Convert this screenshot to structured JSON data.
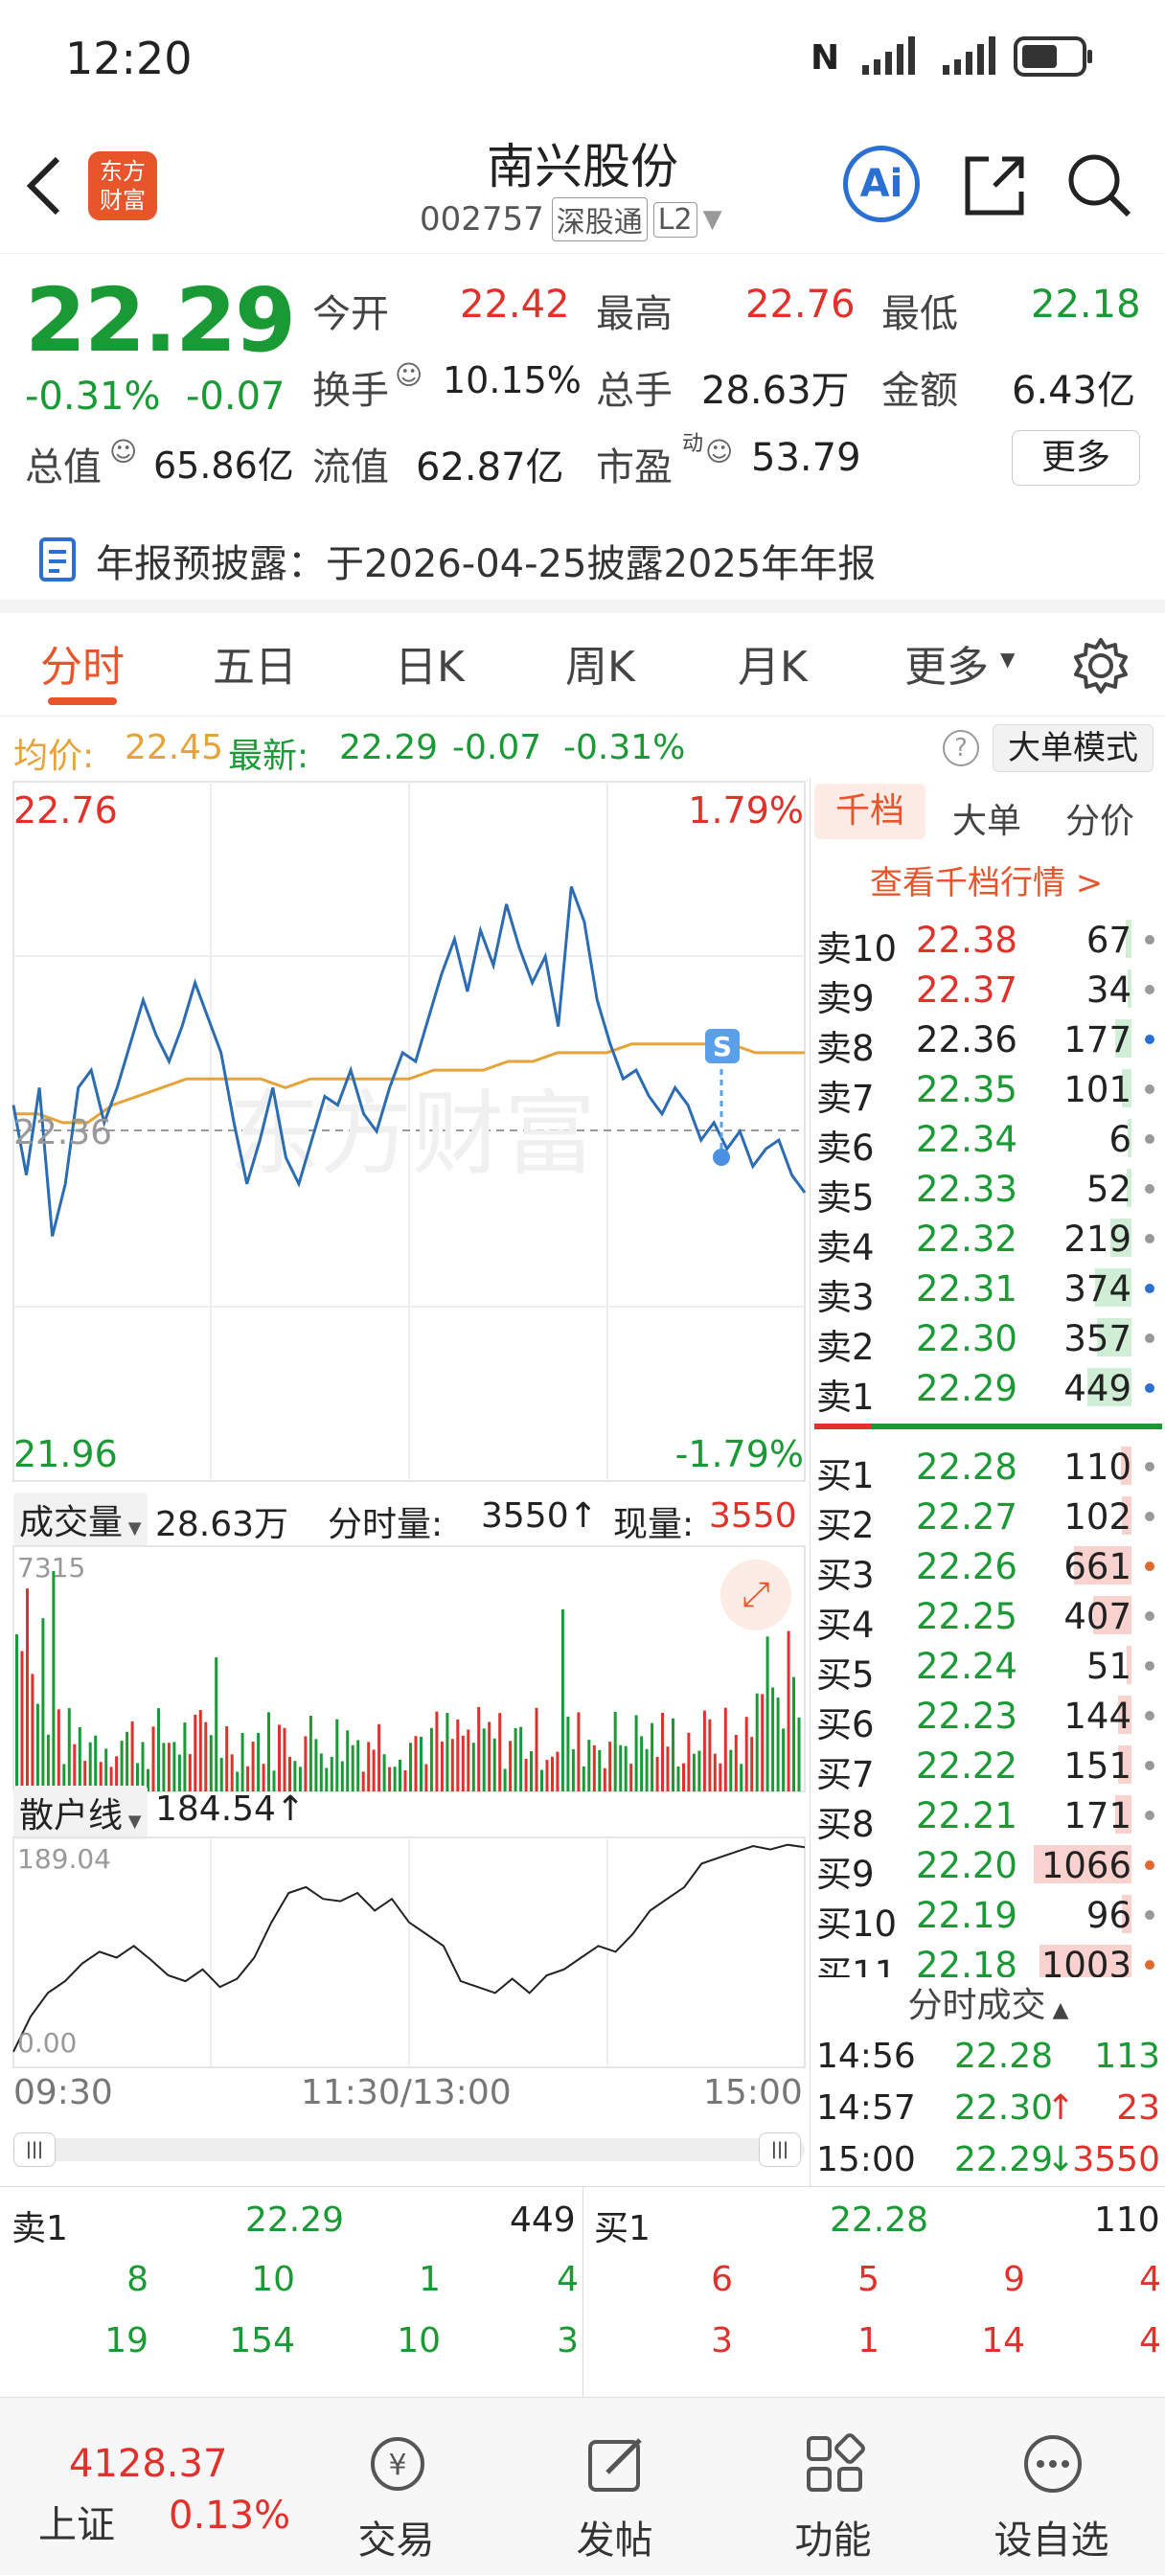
{
  "status": {
    "time": "12:20"
  },
  "header": {
    "logo_text": "东方\n财富",
    "title": "南兴股份",
    "code": "002757",
    "market_tag": "深股通",
    "level_tag": "L2",
    "ai_label": "Ai"
  },
  "quote": {
    "price": "22.29",
    "change_pct": "-0.31%",
    "change": "-0.07",
    "open_label": "今开",
    "open": "22.42",
    "high_label": "最高",
    "high": "22.76",
    "low_label": "最低",
    "low": "22.18",
    "turnover_label": "换手",
    "turnover": "10.15%",
    "volume_label": "总手",
    "volume": "28.63万",
    "amount_label": "金额",
    "amount": "6.43亿",
    "mktcap_label": "总值",
    "mktcap": "65.86亿",
    "float_label": "流值",
    "float": "62.87亿",
    "pe_label": "市盈",
    "pe_sup": "动",
    "pe": "53.79",
    "more": "更多"
  },
  "notice": {
    "text": "年报预披露：于2026-04-25披露2025年年报"
  },
  "tabs": [
    "分时",
    "五日",
    "日K",
    "周K",
    "月K",
    "更多"
  ],
  "infoline": {
    "avg_label": "均价:",
    "avg": "22.45",
    "latest_label": "最新:",
    "latest": "22.29",
    "chg": "-0.07",
    "pct": "-0.31%",
    "mode_btn": "大单模式"
  },
  "chart": {
    "top_price": "22.76",
    "top_pct": "1.79%",
    "bottom_price": "21.96",
    "bottom_pct": "-1.79%",
    "mid_price": "22.36",
    "marker": "S",
    "watermark": "东方财富",
    "vol_label": "成交量",
    "vol_total": "28.63万",
    "tick_vol_label": "分时量:",
    "tick_vol": "3550↑",
    "cur_vol_label": "现量:",
    "cur_vol": "3550",
    "vol_max": "7315",
    "retail_label": "散户线",
    "retail_val": "184.54↑",
    "retail_max": "189.04",
    "retail_min": "0.00",
    "time_start": "09:30",
    "time_mid": "11:30/13:00",
    "time_end": "15:00"
  },
  "chart_data": [
    {
      "type": "line",
      "series": [
        {
          "name": "价格",
          "values": [
            22.39,
            22.31,
            22.41,
            22.24,
            22.3,
            22.41,
            22.43,
            22.37,
            22.41,
            22.46,
            22.51,
            22.47,
            22.44,
            22.48,
            22.53,
            22.49,
            22.45,
            22.37,
            22.3,
            22.35,
            22.41,
            22.33,
            22.3,
            22.35,
            22.4,
            22.39,
            22.43,
            22.38,
            22.36,
            22.41,
            22.45,
            22.44,
            22.49,
            22.54,
            22.58,
            22.52,
            22.59,
            22.55,
            22.62,
            22.57,
            22.53,
            22.56,
            22.48,
            22.64,
            22.6,
            22.51,
            22.46,
            22.42,
            22.43,
            22.4,
            22.38,
            22.41,
            22.39,
            22.35,
            22.37,
            22.34,
            22.36,
            22.32,
            22.34,
            22.35,
            22.31,
            22.29
          ]
        },
        {
          "name": "均价",
          "values": [
            22.38,
            22.38,
            22.37,
            22.37,
            22.39,
            22.4,
            22.41,
            22.42,
            22.42,
            22.42,
            22.42,
            22.41,
            22.42,
            22.42,
            22.42,
            22.42,
            22.42,
            22.43,
            22.43,
            22.43,
            22.44,
            22.44,
            22.45,
            22.45,
            22.45,
            22.46,
            22.46,
            22.46,
            22.46,
            22.46,
            22.45,
            22.45,
            22.45
          ]
        }
      ],
      "ylim": [
        21.96,
        22.76
      ]
    },
    {
      "type": "bar",
      "name": "成交量",
      "ylim": [
        0,
        7315
      ]
    },
    {
      "type": "line",
      "name": "散户线",
      "ylim": [
        0.0,
        189.04
      ]
    }
  ],
  "orderbook": {
    "tabs": [
      "千档",
      "大单",
      "分价"
    ],
    "link": "查看千档行情 >",
    "asks": [
      {
        "label": "卖10",
        "price": "22.38",
        "vol": "67",
        "bar": 0.05,
        "dot": "#999"
      },
      {
        "label": "卖9",
        "price": "22.37",
        "vol": "34",
        "bar": 0.03,
        "dot": "#999"
      },
      {
        "label": "卖8",
        "price": "22.36",
        "vol": "177",
        "bar": 0.14,
        "dot": "#2a6fd1"
      },
      {
        "label": "卖7",
        "price": "22.35",
        "vol": "101",
        "bar": 0.08,
        "dot": "#999"
      },
      {
        "label": "卖6",
        "price": "22.34",
        "vol": "6",
        "bar": 0.01,
        "dot": "#999"
      },
      {
        "label": "卖5",
        "price": "22.33",
        "vol": "52",
        "bar": 0.04,
        "dot": "#999"
      },
      {
        "label": "卖4",
        "price": "22.32",
        "vol": "219",
        "bar": 0.18,
        "dot": "#999"
      },
      {
        "label": "卖3",
        "price": "22.31",
        "vol": "374",
        "bar": 0.32,
        "dot": "#2a6fd1"
      },
      {
        "label": "卖2",
        "price": "22.30",
        "vol": "357",
        "bar": 0.3,
        "dot": "#999"
      },
      {
        "label": "卖1",
        "price": "22.29",
        "vol": "449",
        "bar": 0.38,
        "dot": "#2a6fd1"
      }
    ],
    "bids": [
      {
        "label": "买1",
        "price": "22.28",
        "vol": "110",
        "bar": 0.09,
        "dot": "#999"
      },
      {
        "label": "买2",
        "price": "22.27",
        "vol": "102",
        "bar": 0.08,
        "dot": "#999"
      },
      {
        "label": "买3",
        "price": "22.26",
        "vol": "661",
        "bar": 0.5,
        "dot": "#e0692b"
      },
      {
        "label": "买4",
        "price": "22.25",
        "vol": "407",
        "bar": 0.33,
        "dot": "#999"
      },
      {
        "label": "买5",
        "price": "22.24",
        "vol": "51",
        "bar": 0.04,
        "dot": "#999"
      },
      {
        "label": "买6",
        "price": "22.23",
        "vol": "144",
        "bar": 0.12,
        "dot": "#999"
      },
      {
        "label": "买7",
        "price": "22.22",
        "vol": "151",
        "bar": 0.12,
        "dot": "#999"
      },
      {
        "label": "买8",
        "price": "22.21",
        "vol": "171",
        "bar": 0.14,
        "dot": "#999"
      },
      {
        "label": "买9",
        "price": "22.20",
        "vol": "1066",
        "bar": 0.85,
        "dot": "#e0692b"
      },
      {
        "label": "买10",
        "price": "22.19",
        "vol": "96",
        "bar": 0.08,
        "dot": "#999"
      },
      {
        "label": "买11",
        "price": "22.18",
        "vol": "1003",
        "bar": 0.8,
        "dot": "#e0692b"
      }
    ],
    "trades_title": "分时成交",
    "trades": [
      {
        "time": "14:56",
        "price": "22.28",
        "arrow": "",
        "vol": "113"
      },
      {
        "time": "14:57",
        "price": "22.30",
        "arrow": "↑",
        "vol": "23"
      },
      {
        "time": "15:00",
        "price": "22.29",
        "arrow": "↓",
        "vol": "3550"
      }
    ]
  },
  "tradegrid": {
    "sell_label": "卖1",
    "sell_price": "22.29",
    "sell_vol": "449",
    "buy_label": "买1",
    "buy_price": "22.28",
    "buy_vol": "110",
    "sell_rows": [
      [
        "8",
        "10",
        "1",
        "4"
      ],
      [
        "19",
        "154",
        "10",
        "3"
      ]
    ],
    "buy_rows": [
      [
        "6",
        "5",
        "9",
        "4"
      ],
      [
        "3",
        "1",
        "14",
        "4"
      ]
    ]
  },
  "bottomnav": {
    "index_val": "4128.37",
    "index_name": "上证",
    "index_pct": "0.13%",
    "items": [
      "交易",
      "发帖",
      "功能",
      "设自选"
    ]
  }
}
